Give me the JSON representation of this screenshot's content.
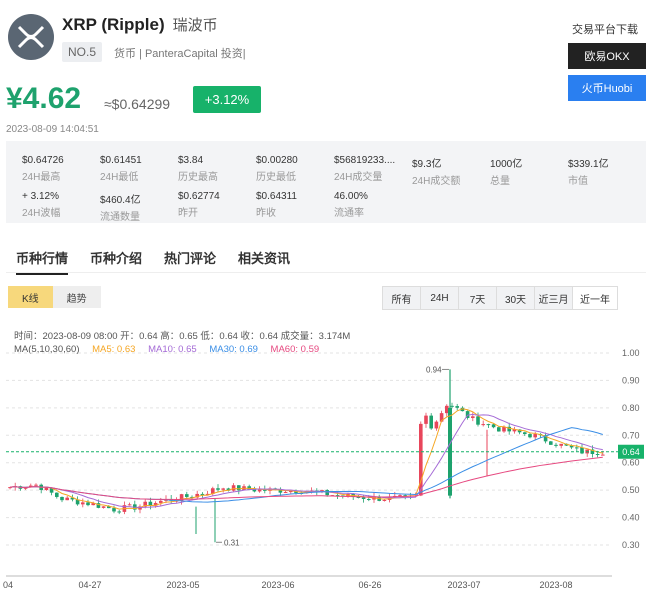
{
  "header": {
    "coin_name": "XRP (Ripple)",
    "coin_name_zh": "瑞波币",
    "rank": "NO.5",
    "tags": "货币 | PanteraCapital 投资|"
  },
  "side": {
    "title": "交易平台下载",
    "okx": "欧易OKX",
    "huobi": "火币Huobi"
  },
  "price": {
    "cny": "¥4.62",
    "usd": "≈$0.64299",
    "change": "+3.12%",
    "time": "2023-08-09 14:04:51"
  },
  "stats": [
    {
      "value": "$0.64726",
      "label": "24H最高"
    },
    {
      "value": "$0.61451",
      "label": "24H最低"
    },
    {
      "value": "$3.84",
      "label": "历史最高"
    },
    {
      "value": "$0.00280",
      "label": "历史最低"
    },
    {
      "value": "$56819233....",
      "label": "24H成交量"
    },
    {
      "value": "$9.3亿",
      "label": "24H成交额"
    },
    {
      "value": "1000亿",
      "label": "总量"
    },
    {
      "value": "$339.1亿",
      "label": "市值"
    },
    {
      "value": "+ 3.12%",
      "label": "24H波幅"
    },
    {
      "value": "$460.4亿",
      "label": "流通数量"
    },
    {
      "value": "$0.62774",
      "label": "昨开"
    },
    {
      "value": "$0.64311",
      "label": "昨收"
    },
    {
      "value": "46.00%",
      "label": "流通率"
    }
  ],
  "tabs": [
    "币种行情",
    "币种介绍",
    "热门评论",
    "相关资讯"
  ],
  "chart_types": [
    "K线",
    "趋势"
  ],
  "ranges": [
    "所有",
    "24H",
    "7天",
    "30天",
    "近三月",
    "近一年"
  ],
  "info_line": "时间：2023-08-09 08:00   开：0.64   高：0.65   低：0.64   收：0.64   成交量：3.174M",
  "ma": {
    "label": "MA(5,10,30,60)",
    "ma5": "MA5: 0.63",
    "ma10": "MA10: 0.65",
    "ma30": "MA30: 0.69",
    "ma60": "MA60: 0.59"
  },
  "colors": {
    "up": "#e8465b",
    "down": "#1ea26d",
    "ma5": "#f5a623",
    "ma10": "#a56bd6",
    "ma30": "#3a8ee6",
    "ma60": "#e64980",
    "current": "#17b26a"
  },
  "chart_data": {
    "type": "candlestick",
    "x_ticks": [
      "04",
      "04-27",
      "2023-05",
      "2023-06",
      "06-26",
      "2023-07",
      "2023-08"
    ],
    "y_ticks": [
      1.0,
      0.9,
      0.8,
      0.7,
      0.6,
      0.5,
      0.4,
      0.3
    ],
    "ylim": [
      0.26,
      1.04
    ],
    "current_price": "0.64",
    "annotations": {
      "high": "0.94",
      "low": "0.31"
    }
  }
}
